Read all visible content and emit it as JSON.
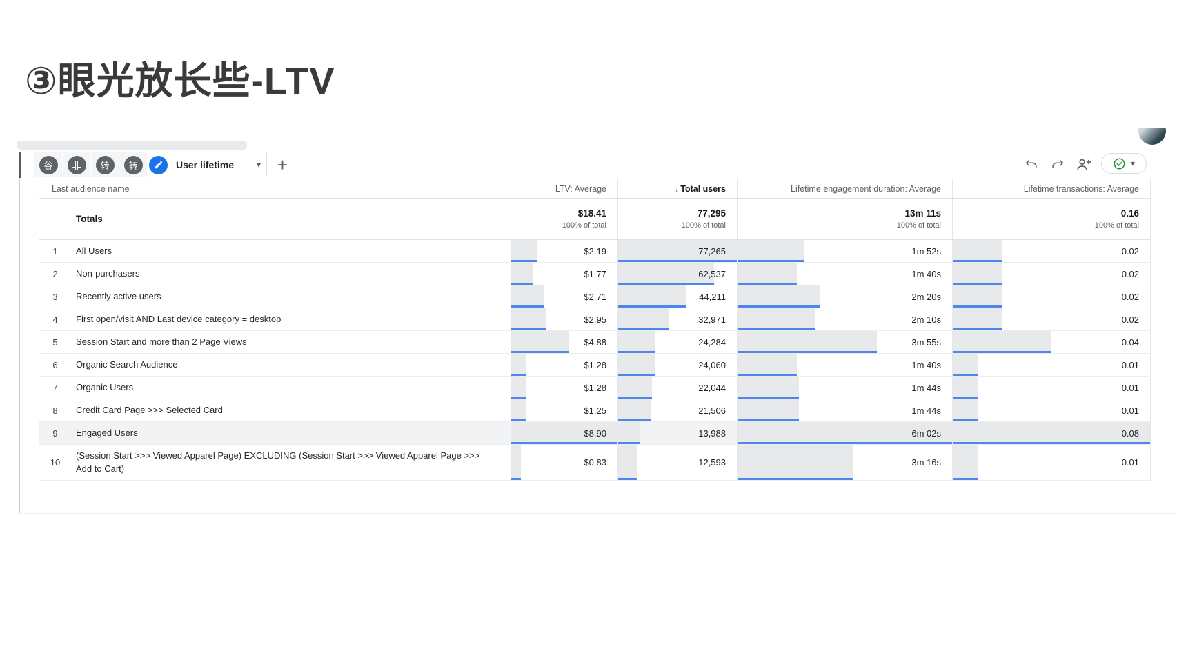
{
  "slide": {
    "title": "③眼光放长些-LTV"
  },
  "toolbar": {
    "tabs": [
      {
        "label": "谷"
      },
      {
        "label": "非"
      },
      {
        "label": "转"
      },
      {
        "label": "转"
      }
    ],
    "active_tab": {
      "label": "User lifetime",
      "icon": "pencil"
    },
    "add_label": "+",
    "actions": {
      "undo": "undo",
      "redo": "redo",
      "share": "person-add",
      "status": "check"
    }
  },
  "table": {
    "name_header": "Last audience name",
    "columns": [
      {
        "label": "LTV: Average",
        "sorted": false
      },
      {
        "label": "Total users",
        "sorted": true,
        "sort_arrow": "↓"
      },
      {
        "label": "Lifetime engagement duration: Average",
        "sorted": false
      },
      {
        "label": "Lifetime transactions: Average",
        "sorted": false
      }
    ],
    "totals": {
      "label": "Totals",
      "subtext": "100% of total",
      "values": [
        "$18.41",
        "77,295",
        "13m 11s",
        "0.16"
      ]
    },
    "max_values": [
      8.9,
      77265,
      362,
      0.08
    ],
    "rows": [
      {
        "index": "1",
        "name": "All Users",
        "values": [
          "$2.19",
          "77,265",
          "1m 52s",
          "0.02"
        ],
        "numeric": [
          2.19,
          77265,
          112,
          0.02
        ],
        "highlight": false,
        "tall": false
      },
      {
        "index": "2",
        "name": "Non-purchasers",
        "values": [
          "$1.77",
          "62,537",
          "1m 40s",
          "0.02"
        ],
        "numeric": [
          1.77,
          62537,
          100,
          0.02
        ],
        "highlight": false,
        "tall": false
      },
      {
        "index": "3",
        "name": "Recently active users",
        "values": [
          "$2.71",
          "44,211",
          "2m 20s",
          "0.02"
        ],
        "numeric": [
          2.71,
          44211,
          140,
          0.02
        ],
        "highlight": false,
        "tall": false
      },
      {
        "index": "4",
        "name": "First open/visit AND Last device category = desktop",
        "values": [
          "$2.95",
          "32,971",
          "2m 10s",
          "0.02"
        ],
        "numeric": [
          2.95,
          32971,
          130,
          0.02
        ],
        "highlight": false,
        "tall": false
      },
      {
        "index": "5",
        "name": "Session Start and more than 2 Page Views",
        "values": [
          "$4.88",
          "24,284",
          "3m 55s",
          "0.04"
        ],
        "numeric": [
          4.88,
          24284,
          235,
          0.04
        ],
        "highlight": false,
        "tall": false
      },
      {
        "index": "6",
        "name": "Organic Search Audience",
        "values": [
          "$1.28",
          "24,060",
          "1m 40s",
          "0.01"
        ],
        "numeric": [
          1.28,
          24060,
          100,
          0.01
        ],
        "highlight": false,
        "tall": false
      },
      {
        "index": "7",
        "name": "Organic Users",
        "values": [
          "$1.28",
          "22,044",
          "1m 44s",
          "0.01"
        ],
        "numeric": [
          1.28,
          22044,
          104,
          0.01
        ],
        "highlight": false,
        "tall": false
      },
      {
        "index": "8",
        "name": "Credit Card Page >>> Selected Card",
        "values": [
          "$1.25",
          "21,506",
          "1m 44s",
          "0.01"
        ],
        "numeric": [
          1.25,
          21506,
          104,
          0.01
        ],
        "highlight": false,
        "tall": false
      },
      {
        "index": "9",
        "name": "Engaged Users",
        "values": [
          "$8.90",
          "13,988",
          "6m 02s",
          "0.08"
        ],
        "numeric": [
          8.9,
          13988,
          362,
          0.08
        ],
        "highlight": true,
        "tall": false
      },
      {
        "index": "10",
        "name": "(Session Start >>> Viewed Apparel Page) EXCLUDING (Session Start >>> Viewed Apparel Page >>> Add to Cart)",
        "values": [
          "$0.83",
          "12,593",
          "3m 16s",
          "0.01"
        ],
        "numeric": [
          0.83,
          12593,
          196,
          0.01
        ],
        "highlight": false,
        "tall": true
      }
    ]
  },
  "colors": {
    "accent_blue": "#1a73e8",
    "bar_blue": "#4e86ec",
    "bar_gray": "#e8e9eb",
    "row_highlight": "#f1f3f4",
    "check_green": "#1e8e3e",
    "tab_circle": "#5f6368",
    "title_text": "#3a3a3a"
  }
}
